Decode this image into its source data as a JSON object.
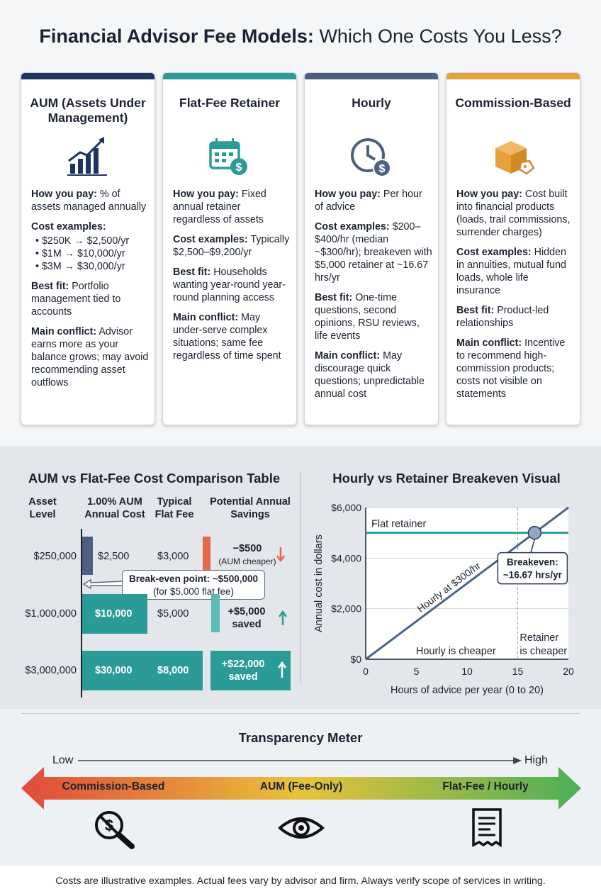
{
  "title": {
    "bold": "Financial Advisor Fee Models:",
    "rest": " Which One Costs You Less?"
  },
  "cards": [
    {
      "title": "AUM (Assets Under Management)",
      "color": "#1e3461",
      "icon": "chart-up-icon",
      "pay_label": "How you pay:",
      "pay": " % of assets managed annually",
      "cost_label": "Cost examples:",
      "cost_items": [
        "$250K → $2,500/yr",
        "$1M → $10,000/yr",
        "$3M → $30,000/yr"
      ],
      "fit_label": "Best fit:",
      "fit": " Portfolio management tied to accounts",
      "conflict_label": "Main conflict:",
      "conflict": " Advisor earns more as your balance grows; may avoid recommending asset outflows"
    },
    {
      "title": "Flat-Fee Retainer",
      "color": "#2a9b97",
      "icon": "calendar-dollar-icon",
      "pay_label": "How you pay:",
      "pay": " Fixed annual retainer regardless of assets",
      "cost_label": "Cost examples:",
      "cost": " Typically $2,500–$9,200/yr",
      "fit_label": "Best fit:",
      "fit": " Households wanting year-round year-round planning access",
      "conflict_label": "Main conflict:",
      "conflict": " May under-serve complex situations; same fee regardless of time spent"
    },
    {
      "title": "Hourly",
      "color": "#4d5f82",
      "icon": "clock-dollar-icon",
      "pay_label": "How you pay:",
      "pay": " Per hour of advice",
      "cost_label": "Cost examples:",
      "cost": " $200–$400/hr (median ~$300/hr); breakeven with $5,000 retainer at ~16.67 hrs/yr",
      "fit_label": "Best fit:",
      "fit": " One-time questions, second opinions, RSU reviews, life events",
      "conflict_label": "Main conflict:",
      "conflict": " May discourage quick questions; unpredictable annual cost"
    },
    {
      "title": "Commission-Based",
      "color": "#e5a13c",
      "icon": "box-tag-icon",
      "pay_label": "How you pay:",
      "pay": " Cost built into financial products (loads, trail commissions, surrender charges)",
      "cost_label": "Cost examples:",
      "cost": " Hidden in annuities, mutual fund loads, whole life insurance",
      "fit_label": "Best fit:",
      "fit": " Product-led relationships",
      "conflict_label": "Main conflict:",
      "conflict": " Incentive to recommend high-commission products; costs not visible on statements"
    }
  ],
  "table": {
    "title": "AUM vs Flat-Fee Cost Comparison Table",
    "headers": [
      "Asset Level",
      "1.00% AUM Annual Cost",
      "Typical Flat Fee",
      "Potential Annual Savings"
    ],
    "rows": [
      {
        "asset": "$250,000",
        "aum": "$2,500",
        "flat": "$3,000",
        "savings": "−$500",
        "note": "(AUM cheaper)",
        "aum_value": 2500,
        "savings_value": -500
      },
      {
        "asset": "$1,000,000",
        "aum": "$10,000",
        "flat": "$5,000",
        "savings": "+$5,000",
        "note": "saved",
        "aum_value": 10000,
        "savings_value": 5000
      },
      {
        "asset": "$3,000,000",
        "aum": "$30,000",
        "flat": "$8,000",
        "savings": "+$22,000",
        "note": "saved",
        "aum_value": 30000,
        "savings_value": 22000
      }
    ],
    "callout_line1": "Break-even point: ~$500,000",
    "callout_line2": "(for $5,000 flat fee)"
  },
  "chart_data": {
    "type": "line",
    "title": "Hourly vs Retainer Breakeven Visual",
    "xlabel": "Hours of advice per year (0 to 20)",
    "ylabel": "Annual cost in dollars",
    "xlim": [
      0,
      20
    ],
    "ylim": [
      0,
      6000
    ],
    "x_ticks": [
      "0",
      "5",
      "10",
      "15",
      "20"
    ],
    "y_ticks": [
      "$0",
      "$2,000",
      "$4,000",
      "$6,000"
    ],
    "series": [
      {
        "name": "Flat retainer",
        "x": [
          0,
          20
        ],
        "y": [
          5000,
          5000
        ],
        "color": "#2a9b97"
      },
      {
        "name": "Hourly at $300/hr",
        "x": [
          0,
          20
        ],
        "y": [
          0,
          6000
        ],
        "color": "#4d6391"
      }
    ],
    "breakeven": {
      "x": 16.67,
      "y": 5000,
      "label_line1": "Breakeven:",
      "label_line2": "~16.67 hrs/yr"
    },
    "region_left": "Hourly is cheaper",
    "region_right_line1": "Retainer",
    "region_right_line2": "is cheaper",
    "grid": true
  },
  "meter": {
    "title": "Transparency Meter",
    "low": "Low",
    "high": "High",
    "labels": [
      "Commission-Based",
      "AUM (Fee-Only)",
      "Flat-Fee / Hourly"
    ],
    "icons": [
      "no-dollar-magnifier-icon",
      "eye-icon",
      "receipt-icon"
    ],
    "colors": [
      "#e04a3c",
      "#e9c23a",
      "#4caf58"
    ]
  },
  "footer": "Costs are illustrative examples. Actual fees vary by advisor and firm. Always verify scope of services in writing."
}
